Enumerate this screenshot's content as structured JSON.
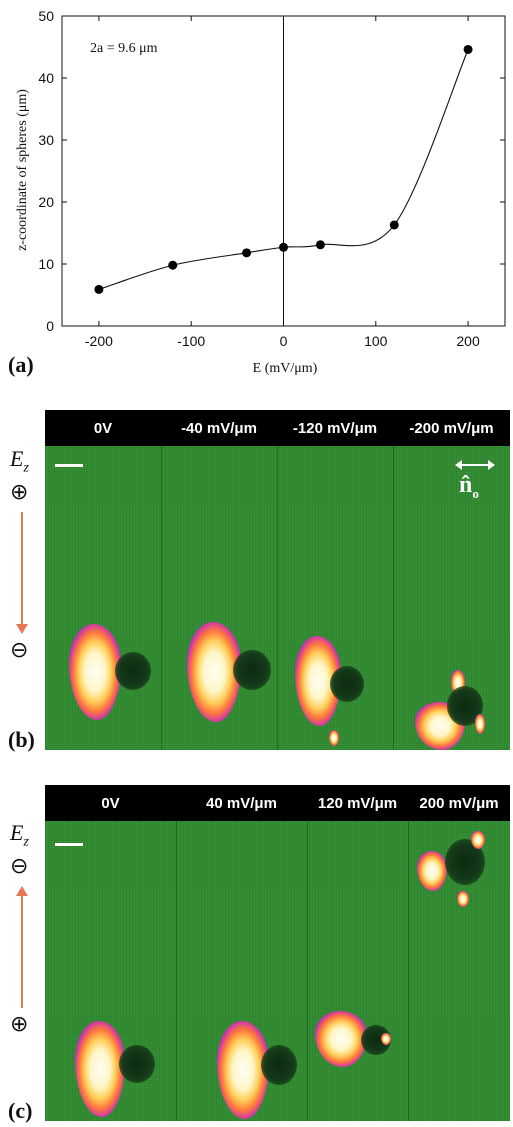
{
  "panel_a": {
    "letter": "(a)",
    "annotation": "2a = 9.6 μm",
    "chart_data": {
      "type": "scatter",
      "xlabel": "E (mV/μm)",
      "ylabel": "z-coordinate of spheres (μm)",
      "xlim": [
        -240,
        240
      ],
      "ylim": [
        0,
        50
      ],
      "xticks": [
        -200,
        -100,
        0,
        100,
        200
      ],
      "yticks": [
        0,
        10,
        20,
        30,
        40,
        50
      ],
      "x": [
        -200,
        -120,
        -40,
        0,
        40,
        120,
        200
      ],
      "y": [
        5.9,
        9.8,
        11.8,
        12.7,
        13.1,
        16.3,
        44.6
      ],
      "fit_curve": true,
      "vertical_line_at_x": 0,
      "grid": false
    }
  },
  "panel_b": {
    "letter": "(b)",
    "labels": [
      "0V",
      "-40 mV/μm",
      "-120 mV/μm",
      "-200 mV/μm"
    ],
    "field_symbol": "E",
    "field_sub": "z",
    "top_sign": "⊕",
    "bottom_sign": "⊖",
    "director": "n̂",
    "director_sub": "o"
  },
  "panel_c": {
    "letter": "(c)",
    "labels": [
      "0V",
      "40 mV/μm",
      "120 mV/μm",
      "200 mV/μm"
    ],
    "field_symbol": "E",
    "field_sub": "z",
    "top_sign": "⊖",
    "bottom_sign": "⊕"
  }
}
